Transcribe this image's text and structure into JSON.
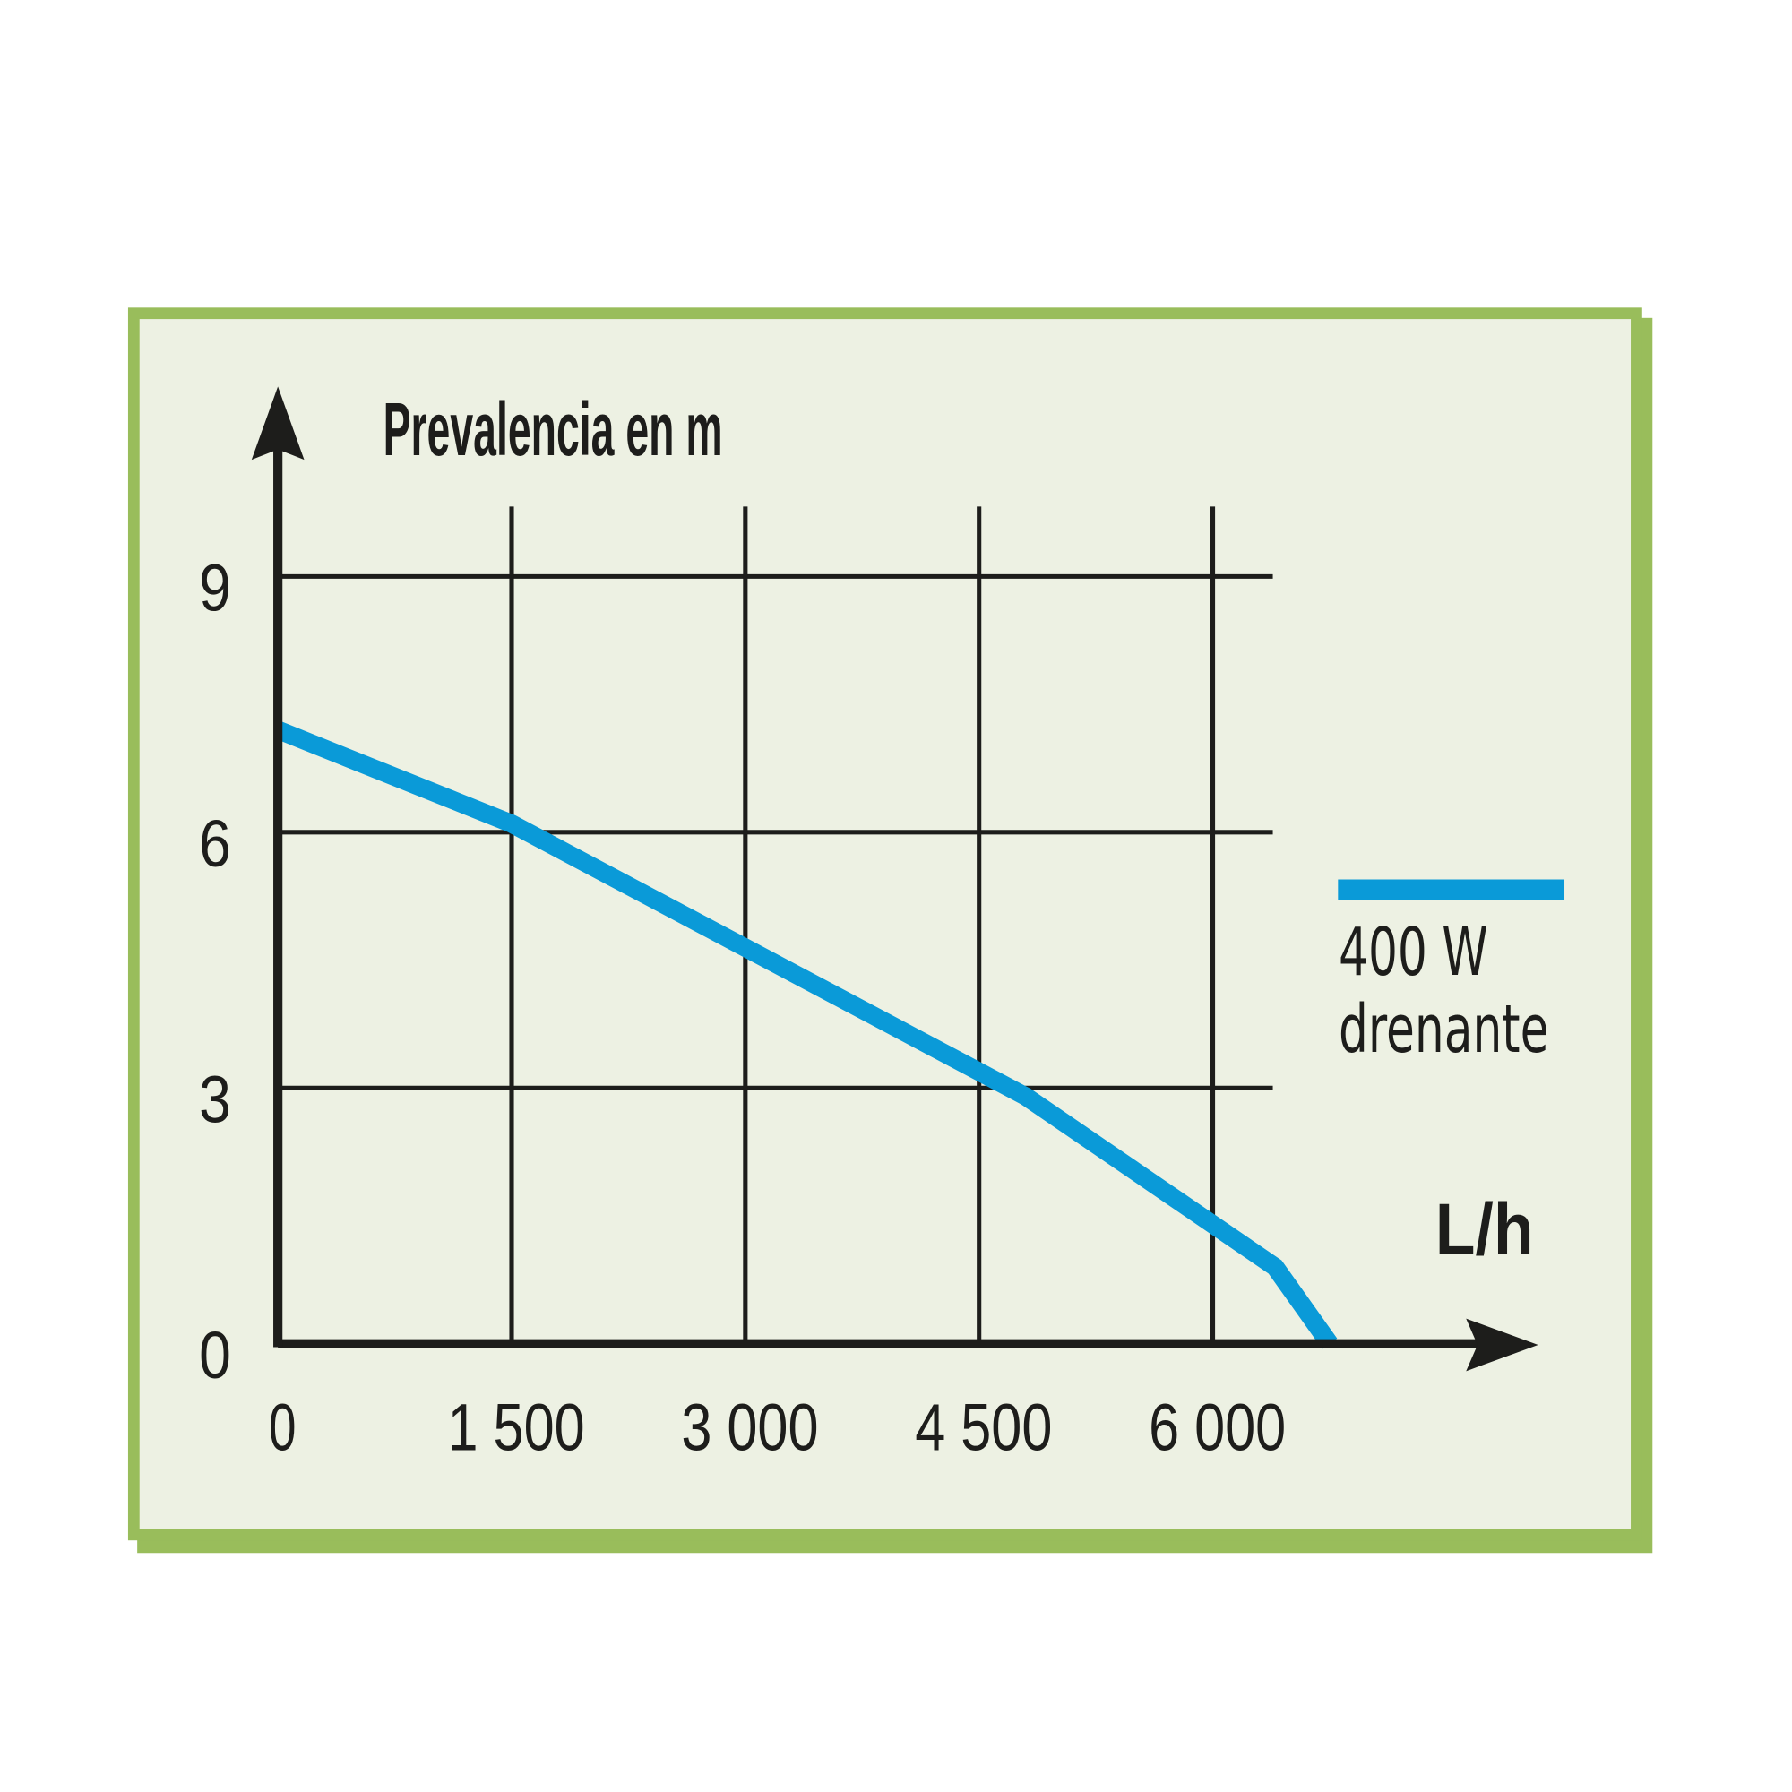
{
  "chart_data": {
    "type": "line",
    "title": "Prevalencia en m",
    "x_label": "L/h",
    "x": [
      0,
      1500,
      4800,
      6400,
      6750
    ],
    "series": [
      {
        "name": "400 W\ndrenante",
        "color": "#0a9ad8",
        "values": [
          7.2,
          6.1,
          2.9,
          0.9,
          0
        ]
      }
    ],
    "xlim": [
      0,
      8000
    ],
    "ylim": [
      0,
      11
    ],
    "xticks": [
      0,
      {
        "value": 1500,
        "label": "1 500"
      },
      {
        "value": 3000,
        "label": "3 000"
      },
      {
        "value": 4500,
        "label": "4 500"
      },
      {
        "value": 6000,
        "label": "6 000"
      }
    ],
    "yticks": [
      0,
      3,
      6,
      9
    ],
    "grid": true,
    "legend": "right"
  }
}
